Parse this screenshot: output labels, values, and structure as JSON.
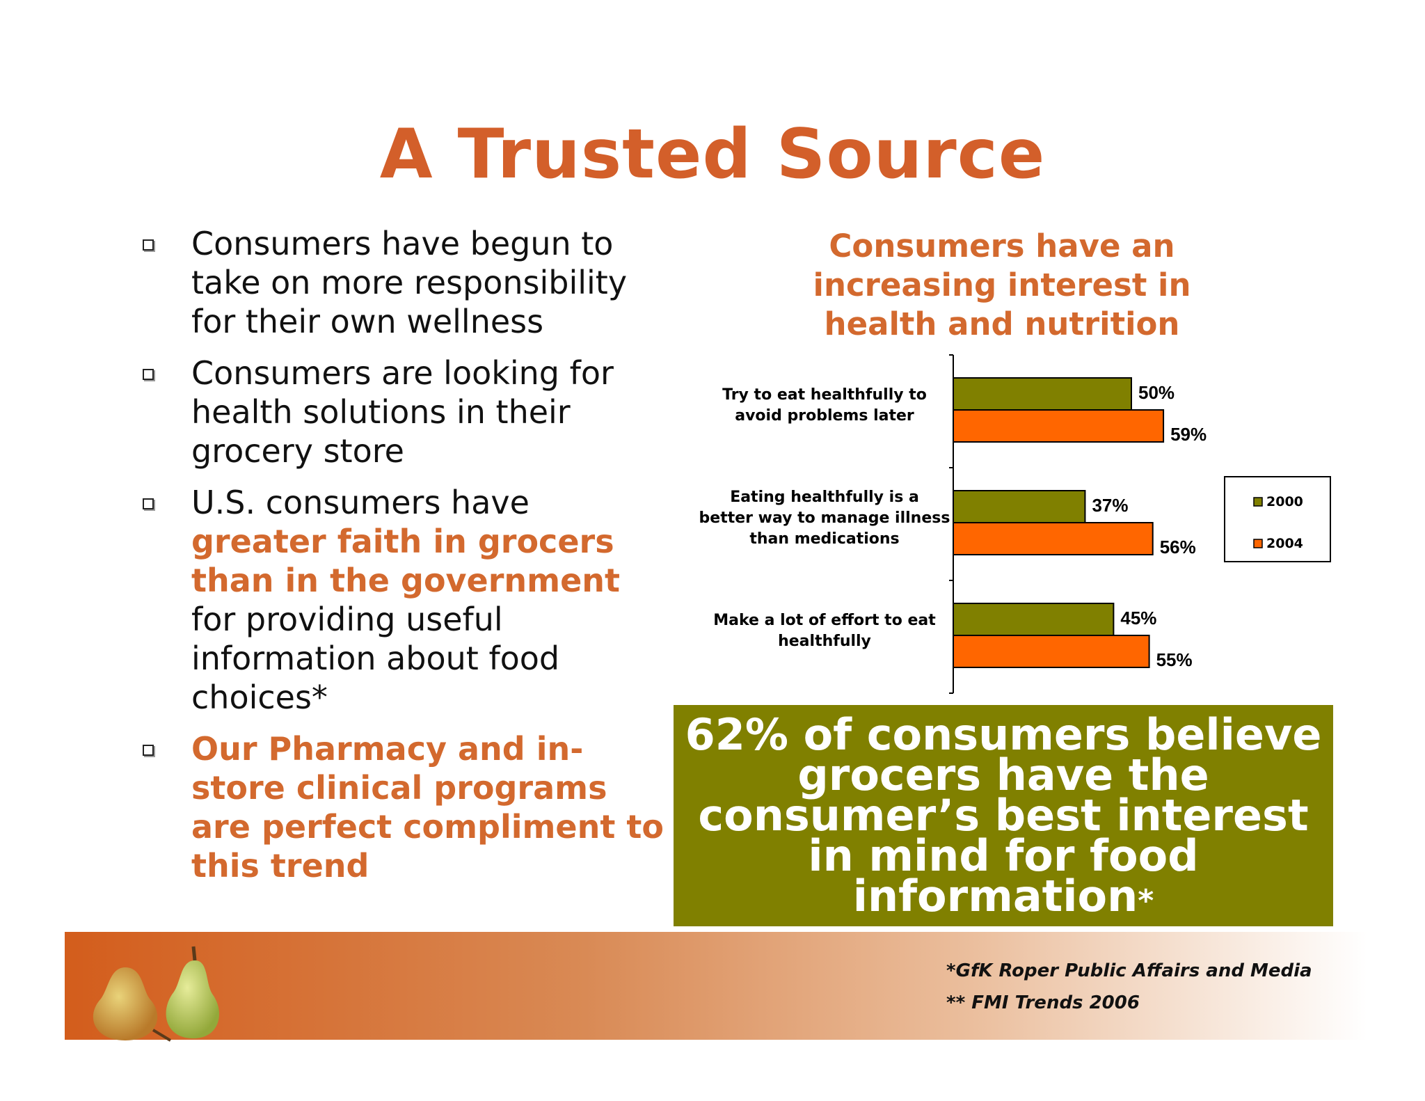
{
  "title": "A Trusted Source",
  "bullets": [
    {
      "parts": [
        {
          "text": "Consumers have begun to take on more responsibility for their own wellness",
          "highlight": false
        }
      ]
    },
    {
      "parts": [
        {
          "text": "Consumers are looking for health solutions in their grocery store",
          "highlight": false
        }
      ]
    },
    {
      "parts": [
        {
          "text": "U.S. consumers have ",
          "highlight": false
        },
        {
          "text": "greater faith in grocers than in the government",
          "highlight": true
        },
        {
          "text": " for providing useful information about food choices*",
          "highlight": false
        }
      ]
    },
    {
      "parts": [
        {
          "text": "Our Pharmacy and in-store clinical programs are perfect compliment to this trend",
          "highlight": true
        }
      ]
    }
  ],
  "chart_title": "Consumers have an increasing interest in health and nutrition",
  "chart_data": {
    "type": "bar",
    "orientation": "horizontal",
    "categories": [
      "Try to eat healthfully to avoid problems later",
      "Eating healthfully is a better way to manage illness than medications",
      "Make a lot of effort to eat healthfully"
    ],
    "series": [
      {
        "name": "2000",
        "values": [
          50,
          37,
          45
        ],
        "labels": [
          "50%",
          "37%",
          "45%"
        ],
        "color": "#808000"
      },
      {
        "name": "2004",
        "values": [
          59,
          56,
          55
        ],
        "labels": [
          "59%",
          "56%",
          "55%"
        ],
        "color": "#ff6600"
      }
    ],
    "xlim": [
      0,
      100
    ],
    "grid": false,
    "legend_position": "right"
  },
  "callout": {
    "text": "62% of consumers believe grocers have the consumer’s best interest in mind for food information",
    "asterisk": "*",
    "background": "#808000"
  },
  "sources": [
    "*GfK Roper Public Affairs and Media",
    "** FMI Trends 2006"
  ],
  "colors": {
    "accent": "#d35f2a",
    "olive": "#808000",
    "orange": "#ff6600"
  }
}
